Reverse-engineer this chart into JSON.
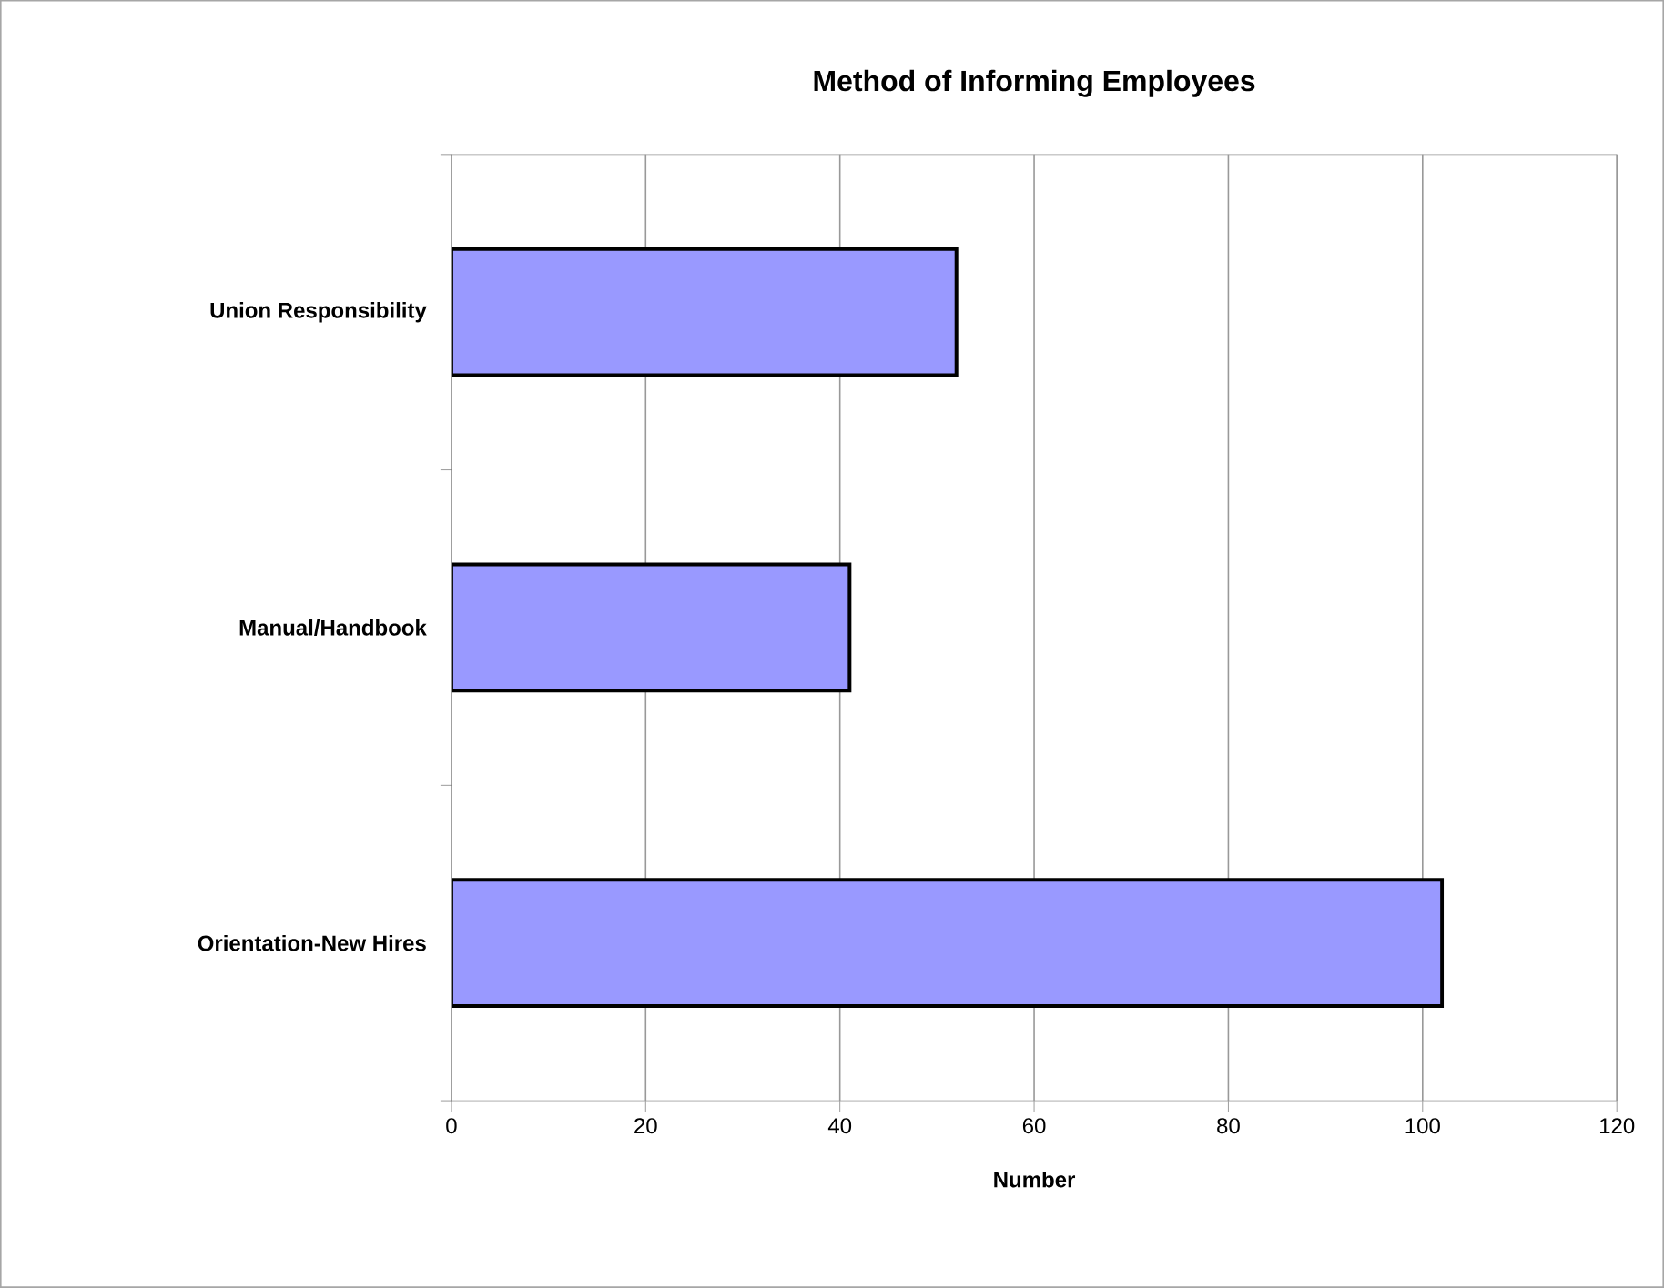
{
  "chart_data": {
    "type": "bar",
    "orientation": "horizontal",
    "title": "Method of Informing Employees",
    "xlabel": "Number",
    "categories": [
      "Union Responsibility",
      "Manual/Handbook",
      "Orientation-New Hires"
    ],
    "values": [
      52,
      41,
      102
    ],
    "color": "#9999ff",
    "xlim": [
      0,
      120
    ],
    "xticks": [
      0,
      20,
      40,
      60,
      80,
      100,
      120
    ],
    "grid": "x"
  }
}
